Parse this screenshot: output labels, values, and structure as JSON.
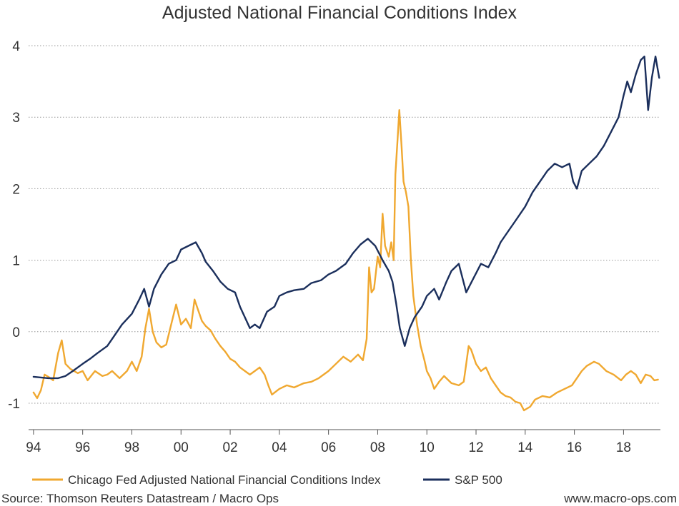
{
  "chart_data": {
    "type": "line",
    "title": "Adjusted National Financial Conditions Index",
    "xlabel": "",
    "ylabel": "",
    "xlim": [
      1993.8,
      2019.5
    ],
    "ylim": [
      -1.35,
      4.25
    ],
    "grid": true,
    "y_ticks": [
      -1,
      0,
      1,
      2,
      3,
      4
    ],
    "y_tick_labels": [
      "-1",
      "0",
      "1",
      "2",
      "3",
      "4"
    ],
    "x_ticks": [
      1994,
      1996,
      1998,
      2000,
      2002,
      2004,
      2006,
      2008,
      2010,
      2012,
      2014,
      2016,
      2018
    ],
    "x_tick_labels": [
      "94",
      "96",
      "98",
      "00",
      "02",
      "04",
      "06",
      "08",
      "10",
      "12",
      "14",
      "16",
      "18"
    ],
    "legend_position": "bottom",
    "series": [
      {
        "name": "Chicago Fed Adjusted National Financial Conditions Index",
        "color": "#F0A830",
        "points": [
          [
            1994.0,
            -0.85
          ],
          [
            1994.15,
            -0.93
          ],
          [
            1994.3,
            -0.82
          ],
          [
            1994.45,
            -0.6
          ],
          [
            1994.6,
            -0.63
          ],
          [
            1994.8,
            -0.68
          ],
          [
            1995.0,
            -0.3
          ],
          [
            1995.15,
            -0.12
          ],
          [
            1995.3,
            -0.45
          ],
          [
            1995.5,
            -0.52
          ],
          [
            1995.8,
            -0.58
          ],
          [
            1996.0,
            -0.55
          ],
          [
            1996.2,
            -0.68
          ],
          [
            1996.5,
            -0.55
          ],
          [
            1996.8,
            -0.62
          ],
          [
            1997.0,
            -0.6
          ],
          [
            1997.2,
            -0.55
          ],
          [
            1997.5,
            -0.65
          ],
          [
            1997.8,
            -0.55
          ],
          [
            1998.0,
            -0.42
          ],
          [
            1998.2,
            -0.55
          ],
          [
            1998.4,
            -0.35
          ],
          [
            1998.55,
            0.05
          ],
          [
            1998.7,
            0.32
          ],
          [
            1998.85,
            0.0
          ],
          [
            1999.0,
            -0.15
          ],
          [
            1999.2,
            -0.22
          ],
          [
            1999.4,
            -0.18
          ],
          [
            1999.6,
            0.1
          ],
          [
            1999.8,
            0.38
          ],
          [
            2000.0,
            0.1
          ],
          [
            2000.2,
            0.18
          ],
          [
            2000.4,
            0.05
          ],
          [
            2000.55,
            0.45
          ],
          [
            2000.7,
            0.3
          ],
          [
            2000.85,
            0.15
          ],
          [
            2001.0,
            0.08
          ],
          [
            2001.2,
            0.02
          ],
          [
            2001.4,
            -0.1
          ],
          [
            2001.6,
            -0.2
          ],
          [
            2001.8,
            -0.28
          ],
          [
            2002.0,
            -0.38
          ],
          [
            2002.2,
            -0.42
          ],
          [
            2002.4,
            -0.5
          ],
          [
            2002.6,
            -0.55
          ],
          [
            2002.8,
            -0.6
          ],
          [
            2003.0,
            -0.55
          ],
          [
            2003.2,
            -0.5
          ],
          [
            2003.4,
            -0.6
          ],
          [
            2003.55,
            -0.75
          ],
          [
            2003.7,
            -0.88
          ],
          [
            2004.0,
            -0.8
          ],
          [
            2004.3,
            -0.75
          ],
          [
            2004.6,
            -0.78
          ],
          [
            2005.0,
            -0.72
          ],
          [
            2005.3,
            -0.7
          ],
          [
            2005.6,
            -0.65
          ],
          [
            2006.0,
            -0.55
          ],
          [
            2006.3,
            -0.45
          ],
          [
            2006.6,
            -0.35
          ],
          [
            2006.9,
            -0.42
          ],
          [
            2007.2,
            -0.32
          ],
          [
            2007.4,
            -0.4
          ],
          [
            2007.55,
            -0.1
          ],
          [
            2007.65,
            0.9
          ],
          [
            2007.75,
            0.55
          ],
          [
            2007.85,
            0.6
          ],
          [
            2008.0,
            1.05
          ],
          [
            2008.1,
            0.9
          ],
          [
            2008.2,
            1.65
          ],
          [
            2008.3,
            1.2
          ],
          [
            2008.45,
            1.05
          ],
          [
            2008.55,
            1.25
          ],
          [
            2008.65,
            1.0
          ],
          [
            2008.72,
            2.2
          ],
          [
            2008.8,
            2.65
          ],
          [
            2008.88,
            3.1
          ],
          [
            2008.97,
            2.6
          ],
          [
            2009.05,
            2.1
          ],
          [
            2009.15,
            1.95
          ],
          [
            2009.25,
            1.75
          ],
          [
            2009.35,
            1.0
          ],
          [
            2009.45,
            0.5
          ],
          [
            2009.6,
            0.1
          ],
          [
            2009.75,
            -0.2
          ],
          [
            2009.9,
            -0.4
          ],
          [
            2010.0,
            -0.55
          ],
          [
            2010.15,
            -0.65
          ],
          [
            2010.3,
            -0.8
          ],
          [
            2010.5,
            -0.7
          ],
          [
            2010.7,
            -0.62
          ],
          [
            2011.0,
            -0.72
          ],
          [
            2011.3,
            -0.75
          ],
          [
            2011.5,
            -0.7
          ],
          [
            2011.6,
            -0.45
          ],
          [
            2011.7,
            -0.2
          ],
          [
            2011.8,
            -0.25
          ],
          [
            2011.9,
            -0.35
          ],
          [
            2012.0,
            -0.45
          ],
          [
            2012.2,
            -0.55
          ],
          [
            2012.4,
            -0.5
          ],
          [
            2012.6,
            -0.65
          ],
          [
            2012.8,
            -0.75
          ],
          [
            2013.0,
            -0.85
          ],
          [
            2013.2,
            -0.9
          ],
          [
            2013.4,
            -0.92
          ],
          [
            2013.6,
            -0.98
          ],
          [
            2013.8,
            -1.0
          ],
          [
            2013.95,
            -1.1
          ],
          [
            2014.2,
            -1.05
          ],
          [
            2014.4,
            -0.95
          ],
          [
            2014.7,
            -0.9
          ],
          [
            2015.0,
            -0.92
          ],
          [
            2015.3,
            -0.85
          ],
          [
            2015.6,
            -0.8
          ],
          [
            2015.9,
            -0.75
          ],
          [
            2016.1,
            -0.65
          ],
          [
            2016.3,
            -0.55
          ],
          [
            2016.5,
            -0.48
          ],
          [
            2016.8,
            -0.42
          ],
          [
            2017.0,
            -0.45
          ],
          [
            2017.3,
            -0.55
          ],
          [
            2017.6,
            -0.6
          ],
          [
            2017.9,
            -0.68
          ],
          [
            2018.1,
            -0.6
          ],
          [
            2018.3,
            -0.55
          ],
          [
            2018.5,
            -0.6
          ],
          [
            2018.7,
            -0.72
          ],
          [
            2018.9,
            -0.6
          ],
          [
            2019.1,
            -0.62
          ],
          [
            2019.25,
            -0.68
          ],
          [
            2019.4,
            -0.67
          ]
        ]
      },
      {
        "name": "S&P 500",
        "color": "#1B2F5C",
        "points": [
          [
            1994.0,
            -0.63
          ],
          [
            1994.3,
            -0.64
          ],
          [
            1994.6,
            -0.65
          ],
          [
            1995.0,
            -0.65
          ],
          [
            1995.3,
            -0.62
          ],
          [
            1995.6,
            -0.55
          ],
          [
            1996.0,
            -0.45
          ],
          [
            1996.3,
            -0.38
          ],
          [
            1996.6,
            -0.3
          ],
          [
            1997.0,
            -0.2
          ],
          [
            1997.3,
            -0.05
          ],
          [
            1997.6,
            0.1
          ],
          [
            1998.0,
            0.25
          ],
          [
            1998.3,
            0.45
          ],
          [
            1998.5,
            0.6
          ],
          [
            1998.7,
            0.35
          ],
          [
            1998.9,
            0.6
          ],
          [
            1999.2,
            0.8
          ],
          [
            1999.5,
            0.95
          ],
          [
            1999.8,
            1.0
          ],
          [
            2000.0,
            1.15
          ],
          [
            2000.3,
            1.2
          ],
          [
            2000.6,
            1.25
          ],
          [
            2000.85,
            1.1
          ],
          [
            2001.0,
            0.98
          ],
          [
            2001.3,
            0.85
          ],
          [
            2001.6,
            0.7
          ],
          [
            2001.9,
            0.6
          ],
          [
            2002.2,
            0.55
          ],
          [
            2002.4,
            0.35
          ],
          [
            2002.6,
            0.2
          ],
          [
            2002.8,
            0.05
          ],
          [
            2003.0,
            0.1
          ],
          [
            2003.2,
            0.05
          ],
          [
            2003.5,
            0.28
          ],
          [
            2003.8,
            0.35
          ],
          [
            2004.0,
            0.5
          ],
          [
            2004.3,
            0.55
          ],
          [
            2004.6,
            0.58
          ],
          [
            2005.0,
            0.6
          ],
          [
            2005.3,
            0.68
          ],
          [
            2005.7,
            0.72
          ],
          [
            2006.0,
            0.8
          ],
          [
            2006.3,
            0.85
          ],
          [
            2006.7,
            0.95
          ],
          [
            2007.0,
            1.1
          ],
          [
            2007.3,
            1.22
          ],
          [
            2007.6,
            1.3
          ],
          [
            2007.9,
            1.2
          ],
          [
            2008.2,
            1.0
          ],
          [
            2008.45,
            0.85
          ],
          [
            2008.6,
            0.7
          ],
          [
            2008.75,
            0.4
          ],
          [
            2008.9,
            0.05
          ],
          [
            2009.1,
            -0.2
          ],
          [
            2009.3,
            0.05
          ],
          [
            2009.5,
            0.2
          ],
          [
            2009.8,
            0.35
          ],
          [
            2010.0,
            0.5
          ],
          [
            2010.3,
            0.6
          ],
          [
            2010.5,
            0.45
          ],
          [
            2010.8,
            0.7
          ],
          [
            2011.0,
            0.85
          ],
          [
            2011.3,
            0.95
          ],
          [
            2011.6,
            0.55
          ],
          [
            2011.9,
            0.75
          ],
          [
            2012.2,
            0.95
          ],
          [
            2012.5,
            0.9
          ],
          [
            2012.8,
            1.1
          ],
          [
            2013.0,
            1.25
          ],
          [
            2013.3,
            1.4
          ],
          [
            2013.6,
            1.55
          ],
          [
            2014.0,
            1.75
          ],
          [
            2014.3,
            1.95
          ],
          [
            2014.6,
            2.1
          ],
          [
            2014.9,
            2.25
          ],
          [
            2015.2,
            2.35
          ],
          [
            2015.5,
            2.3
          ],
          [
            2015.8,
            2.35
          ],
          [
            2015.95,
            2.1
          ],
          [
            2016.1,
            2.0
          ],
          [
            2016.3,
            2.25
          ],
          [
            2016.6,
            2.35
          ],
          [
            2016.9,
            2.45
          ],
          [
            2017.2,
            2.6
          ],
          [
            2017.5,
            2.8
          ],
          [
            2017.8,
            3.0
          ],
          [
            2018.0,
            3.3
          ],
          [
            2018.15,
            3.5
          ],
          [
            2018.3,
            3.35
          ],
          [
            2018.5,
            3.6
          ],
          [
            2018.7,
            3.8
          ],
          [
            2018.85,
            3.85
          ],
          [
            2019.0,
            3.1
          ],
          [
            2019.15,
            3.55
          ],
          [
            2019.3,
            3.85
          ],
          [
            2019.45,
            3.55
          ]
        ]
      }
    ]
  },
  "footer": {
    "source": "Source: Thomson Reuters Datastream / Macro Ops",
    "website": "www.macro-ops.com"
  }
}
